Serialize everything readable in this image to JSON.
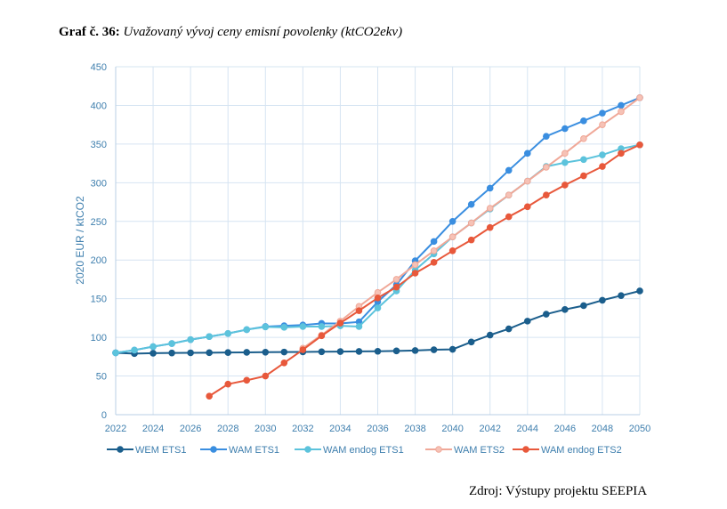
{
  "caption": {
    "number": "Graf č. 36:",
    "text": "Uvažovaný vývoj ceny emisní povolenky (ktCO2ekv)"
  },
  "source": "Zdroj: Výstupy projektu SEEPIA",
  "chart_data": {
    "type": "line",
    "title": "Uvažovaný vývoj ceny emisní povolenky (ktCO2ekv)",
    "xlabel": "",
    "ylabel": "2020 EUR / ktCO2",
    "xlim": [
      2022,
      2050
    ],
    "ylim": [
      0,
      450
    ],
    "x_ticks": [
      2022,
      2024,
      2026,
      2028,
      2030,
      2032,
      2034,
      2036,
      2038,
      2040,
      2042,
      2044,
      2046,
      2048,
      2050
    ],
    "y_ticks": [
      0,
      50,
      100,
      150,
      200,
      250,
      300,
      350,
      400,
      450
    ],
    "grid": true,
    "legend_position": "bottom",
    "series": [
      {
        "name": "WEM ETS1",
        "color": "#1b5e8c",
        "marker_fill": "#1b5e8c",
        "x": [
          2022,
          2023,
          2024,
          2025,
          2026,
          2027,
          2028,
          2029,
          2030,
          2031,
          2032,
          2033,
          2034,
          2035,
          2036,
          2037,
          2038,
          2039,
          2040,
          2041,
          2042,
          2043,
          2044,
          2045,
          2046,
          2047,
          2048,
          2049,
          2050
        ],
        "values": [
          80,
          79,
          79.5,
          79.8,
          80,
          80.2,
          80.4,
          80.6,
          80.8,
          81,
          81.2,
          81.4,
          81.6,
          81.8,
          82,
          82.5,
          83,
          84,
          84.5,
          94,
          103,
          111,
          121,
          130,
          136,
          141,
          148,
          154,
          160
        ]
      },
      {
        "name": "WAM ETS1",
        "color": "#3a8ee0",
        "marker_fill": "#3a8ee0",
        "x": [
          2022,
          2023,
          2024,
          2025,
          2026,
          2027,
          2028,
          2029,
          2030,
          2031,
          2032,
          2033,
          2034,
          2035,
          2036,
          2037,
          2038,
          2039,
          2040,
          2041,
          2042,
          2043,
          2044,
          2045,
          2046,
          2047,
          2048,
          2049,
          2050
        ],
        "values": [
          80,
          83.5,
          88,
          92,
          97,
          101,
          105,
          110,
          114,
          115,
          116,
          118,
          118,
          120,
          146,
          168,
          199,
          224,
          250,
          272,
          293,
          316,
          338,
          360,
          370,
          380,
          390,
          400,
          410
        ]
      },
      {
        "name": "WAM endog ETS1",
        "color": "#5cc3dc",
        "marker_fill": "#5cc3dc",
        "x": [
          2022,
          2023,
          2024,
          2025,
          2026,
          2027,
          2028,
          2029,
          2030,
          2031,
          2032,
          2033,
          2034,
          2035,
          2036,
          2037,
          2038,
          2039,
          2040,
          2041,
          2042,
          2043,
          2044,
          2045,
          2046,
          2047,
          2048,
          2049,
          2050
        ],
        "values": [
          80,
          83.5,
          88,
          92,
          97,
          101,
          105,
          110,
          113.5,
          113,
          114,
          114,
          115,
          114,
          138,
          160,
          187,
          208,
          230,
          248,
          266,
          284,
          302,
          321,
          326,
          330,
          336,
          344,
          349
        ]
      },
      {
        "name": "WAM ETS2",
        "color": "#f0a898",
        "marker_fill": "#f6c2b6",
        "x": [
          2032,
          2033,
          2034,
          2035,
          2036,
          2037,
          2038,
          2039,
          2040,
          2041,
          2042,
          2043,
          2044,
          2045,
          2046,
          2047,
          2048,
          2049,
          2050
        ],
        "values": [
          86,
          103,
          121,
          140,
          158,
          175,
          194,
          212,
          230,
          248,
          267,
          284,
          302,
          320,
          338,
          357,
          375,
          392,
          410
        ]
      },
      {
        "name": "WAM endog ETS2",
        "color": "#e8583b",
        "marker_fill": "#e8583b",
        "x": [
          2027,
          2028,
          2029,
          2030,
          2031,
          2032,
          2033,
          2034,
          2035,
          2036,
          2037,
          2038,
          2039,
          2040,
          2041,
          2042,
          2043,
          2044,
          2045,
          2046,
          2047,
          2048,
          2049,
          2050
        ],
        "values": [
          24,
          39.5,
          44.5,
          50,
          67,
          84,
          102,
          118.5,
          134.5,
          151,
          165,
          183,
          197,
          212,
          226,
          242,
          256,
          269,
          284,
          297,
          309,
          321,
          338,
          349
        ]
      }
    ]
  }
}
